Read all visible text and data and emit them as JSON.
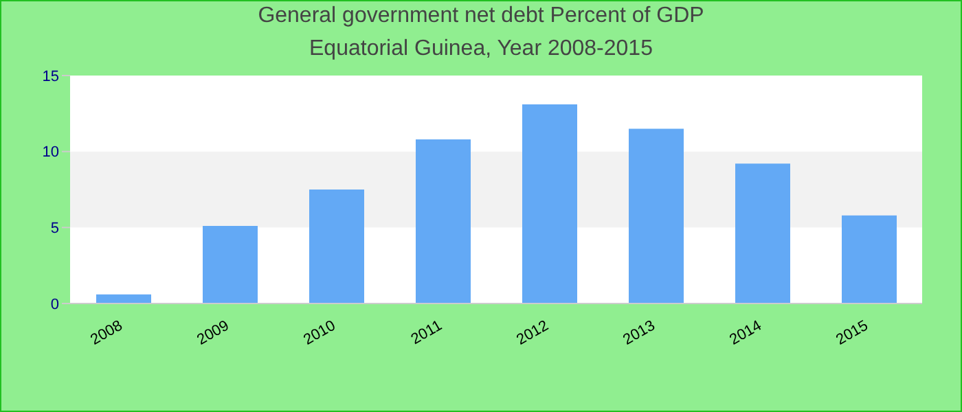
{
  "chart_data": {
    "type": "bar",
    "title": "General government net debt  Percent of GDP",
    "subtitle": "Equatorial Guinea, Year 2008-2015",
    "categories": [
      "2008",
      "2009",
      "2010",
      "2011",
      "2012",
      "2013",
      "2014",
      "2015"
    ],
    "values": [
      0.6,
      5.1,
      7.5,
      10.8,
      13.1,
      11.5,
      9.2,
      5.8
    ],
    "color": "#63a9f5",
    "ylim": [
      0,
      15
    ],
    "yticks": [
      0,
      5,
      10,
      15
    ],
    "bands": [
      {
        "axis": "y",
        "from": 5,
        "to": 10,
        "color": "#f2f2f2"
      }
    ],
    "legend": false
  }
}
